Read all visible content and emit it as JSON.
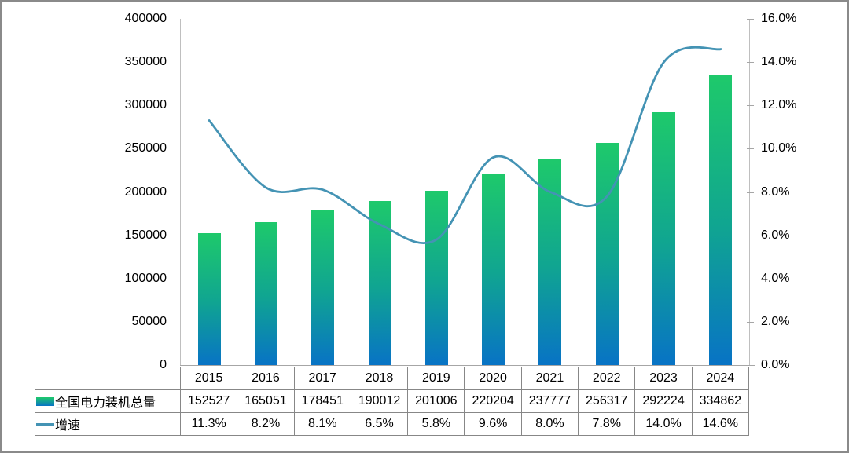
{
  "chart_data": {
    "type": "combo-bar-line",
    "categories": [
      "2015",
      "2016",
      "2017",
      "2018",
      "2019",
      "2020",
      "2021",
      "2022",
      "2023",
      "2024"
    ],
    "series": [
      {
        "name": "全国电力装机总量",
        "type": "bar",
        "y_axis": "left",
        "values": [
          152527,
          165051,
          178451,
          190012,
          201006,
          220204,
          237777,
          256317,
          292224,
          334862
        ],
        "display": [
          "152527",
          "165051",
          "178451",
          "190012",
          "201006",
          "220204",
          "237777",
          "256317",
          "292224",
          "334862"
        ]
      },
      {
        "name": "增速",
        "type": "line",
        "smooth": true,
        "y_axis": "right",
        "values_percent": [
          11.3,
          8.2,
          8.1,
          6.5,
          5.8,
          9.6,
          8.0,
          7.8,
          14.0,
          14.6
        ],
        "display": [
          "11.3%",
          "8.2%",
          "8.1%",
          "6.5%",
          "5.8%",
          "9.6%",
          "8.0%",
          "7.8%",
          "14.0%",
          "14.6%"
        ]
      }
    ],
    "left_axis": {
      "min": 0,
      "max": 400000,
      "step": 50000,
      "tick_labels": [
        "400000",
        "350000",
        "300000",
        "250000",
        "200000",
        "150000",
        "100000",
        "50000",
        "0"
      ]
    },
    "right_axis": {
      "min": 0,
      "max": 16,
      "step": 2,
      "tick_labels": [
        "16.0%",
        "14.0%",
        "12.0%",
        "10.0%",
        "8.0%",
        "6.0%",
        "4.0%",
        "2.0%",
        "0.0%"
      ]
    },
    "grid": false,
    "legend_position": "data-table-left",
    "colors": {
      "bar_gradient_top": "#1EC96B",
      "bar_gradient_mid": "#10A591",
      "bar_gradient_bottom": "#0873C5",
      "line": "#4493B4",
      "axis_line": "#bfbfbf",
      "table_border": "#878787"
    }
  }
}
